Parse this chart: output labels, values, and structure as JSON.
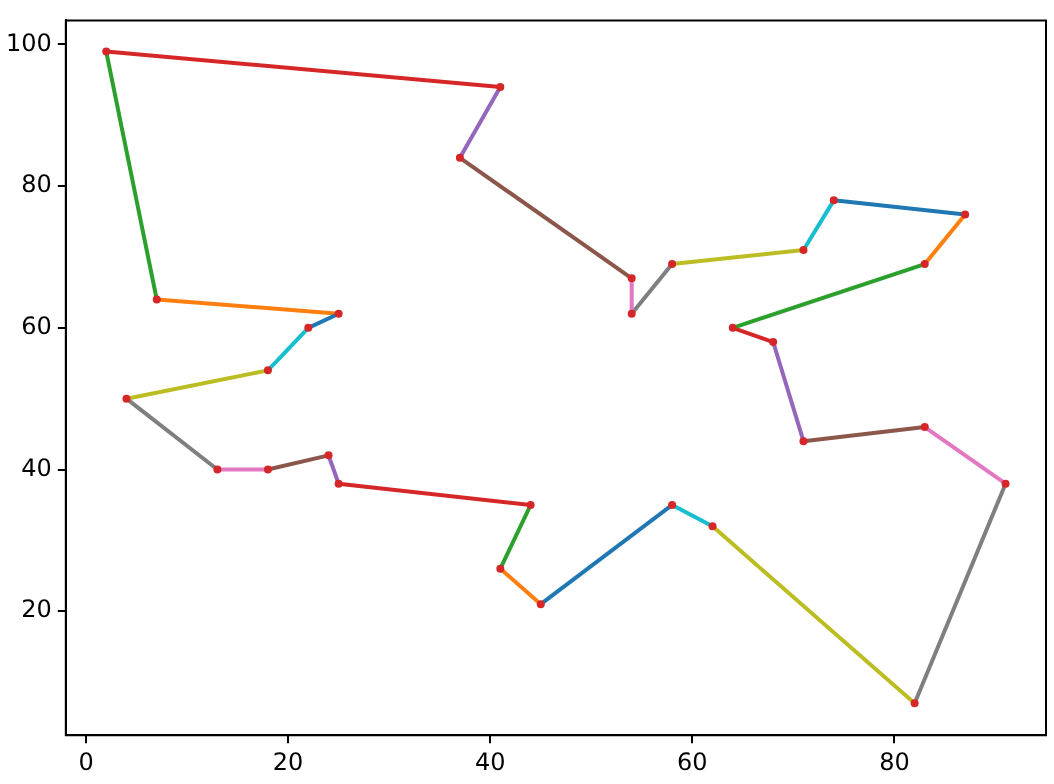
{
  "chart_data": {
    "type": "line",
    "xlim": [
      -2,
      95
    ],
    "ylim": [
      2.5,
      103.4
    ],
    "xticks": [
      0,
      20,
      40,
      60,
      80
    ],
    "yticks": [
      20,
      40,
      60,
      80,
      100
    ],
    "grid": false,
    "legend": false,
    "marker": "none",
    "series": [
      {
        "color": "#1f77b4",
        "x": [
          74,
          87
        ],
        "values": [
          78,
          76
        ]
      },
      {
        "color": "#ff7f0e",
        "x": [
          87,
          83
        ],
        "values": [
          76,
          69
        ]
      },
      {
        "color": "#2ca02c",
        "x": [
          83,
          64
        ],
        "values": [
          69,
          60
        ]
      },
      {
        "color": "#d62728",
        "x": [
          64,
          68
        ],
        "values": [
          60,
          58
        ]
      },
      {
        "color": "#9467bd",
        "x": [
          68,
          71
        ],
        "values": [
          58,
          44
        ]
      },
      {
        "color": "#8c564b",
        "x": [
          71,
          83
        ],
        "values": [
          44,
          46
        ]
      },
      {
        "color": "#e377c2",
        "x": [
          83,
          91
        ],
        "values": [
          46,
          38
        ]
      },
      {
        "color": "#7f7f7f",
        "x": [
          91,
          82
        ],
        "values": [
          38,
          7
        ]
      },
      {
        "color": "#bcbd22",
        "x": [
          82,
          62
        ],
        "values": [
          7,
          32
        ]
      },
      {
        "color": "#17becf",
        "x": [
          62,
          58
        ],
        "values": [
          32,
          35
        ]
      },
      {
        "color": "#1f77b4",
        "x": [
          58,
          45
        ],
        "values": [
          35,
          21
        ]
      },
      {
        "color": "#ff7f0e",
        "x": [
          45,
          41
        ],
        "values": [
          21,
          26
        ]
      },
      {
        "color": "#2ca02c",
        "x": [
          41,
          44
        ],
        "values": [
          26,
          35
        ]
      },
      {
        "color": "#d62728",
        "x": [
          44,
          25
        ],
        "values": [
          35,
          38
        ]
      },
      {
        "color": "#9467bd",
        "x": [
          25,
          24
        ],
        "values": [
          38,
          42
        ]
      },
      {
        "color": "#8c564b",
        "x": [
          24,
          18
        ],
        "values": [
          42,
          40
        ]
      },
      {
        "color": "#e377c2",
        "x": [
          18,
          13
        ],
        "values": [
          40,
          40
        ]
      },
      {
        "color": "#7f7f7f",
        "x": [
          13,
          4
        ],
        "values": [
          40,
          50
        ]
      },
      {
        "color": "#bcbd22",
        "x": [
          4,
          18
        ],
        "values": [
          50,
          54
        ]
      },
      {
        "color": "#17becf",
        "x": [
          18,
          22
        ],
        "values": [
          54,
          60
        ]
      },
      {
        "color": "#1f77b4",
        "x": [
          22,
          25
        ],
        "values": [
          60,
          62
        ]
      },
      {
        "color": "#ff7f0e",
        "x": [
          25,
          7
        ],
        "values": [
          62,
          64
        ]
      },
      {
        "color": "#2ca02c",
        "x": [
          7,
          2
        ],
        "values": [
          64,
          99
        ]
      },
      {
        "color": "#d62728",
        "x": [
          2,
          41
        ],
        "values": [
          99,
          94
        ]
      },
      {
        "color": "#9467bd",
        "x": [
          41,
          37
        ],
        "values": [
          94,
          84
        ]
      },
      {
        "color": "#8c564b",
        "x": [
          37,
          54
        ],
        "values": [
          84,
          67
        ]
      },
      {
        "color": "#e377c2",
        "x": [
          54,
          54
        ],
        "values": [
          67,
          62
        ]
      },
      {
        "color": "#7f7f7f",
        "x": [
          54,
          58
        ],
        "values": [
          62,
          69
        ]
      },
      {
        "color": "#bcbd22",
        "x": [
          58,
          71
        ],
        "values": [
          69,
          71
        ]
      },
      {
        "color": "#17becf",
        "x": [
          71,
          74
        ],
        "values": [
          71,
          78
        ]
      },
      {
        "type": "scatter",
        "marker": "circle",
        "color": "#d62728",
        "x": [
          74,
          87,
          83,
          64,
          68,
          71,
          83,
          91,
          82,
          62,
          58,
          45,
          41,
          44,
          25,
          24,
          18,
          13,
          4,
          18,
          22,
          25,
          7,
          2,
          41,
          37,
          54,
          54,
          58,
          71
        ],
        "values": [
          78,
          76,
          69,
          60,
          58,
          44,
          46,
          38,
          7,
          32,
          35,
          21,
          26,
          35,
          38,
          42,
          40,
          40,
          50,
          54,
          60,
          62,
          64,
          99,
          94,
          84,
          67,
          62,
          69,
          71
        ]
      }
    ]
  }
}
